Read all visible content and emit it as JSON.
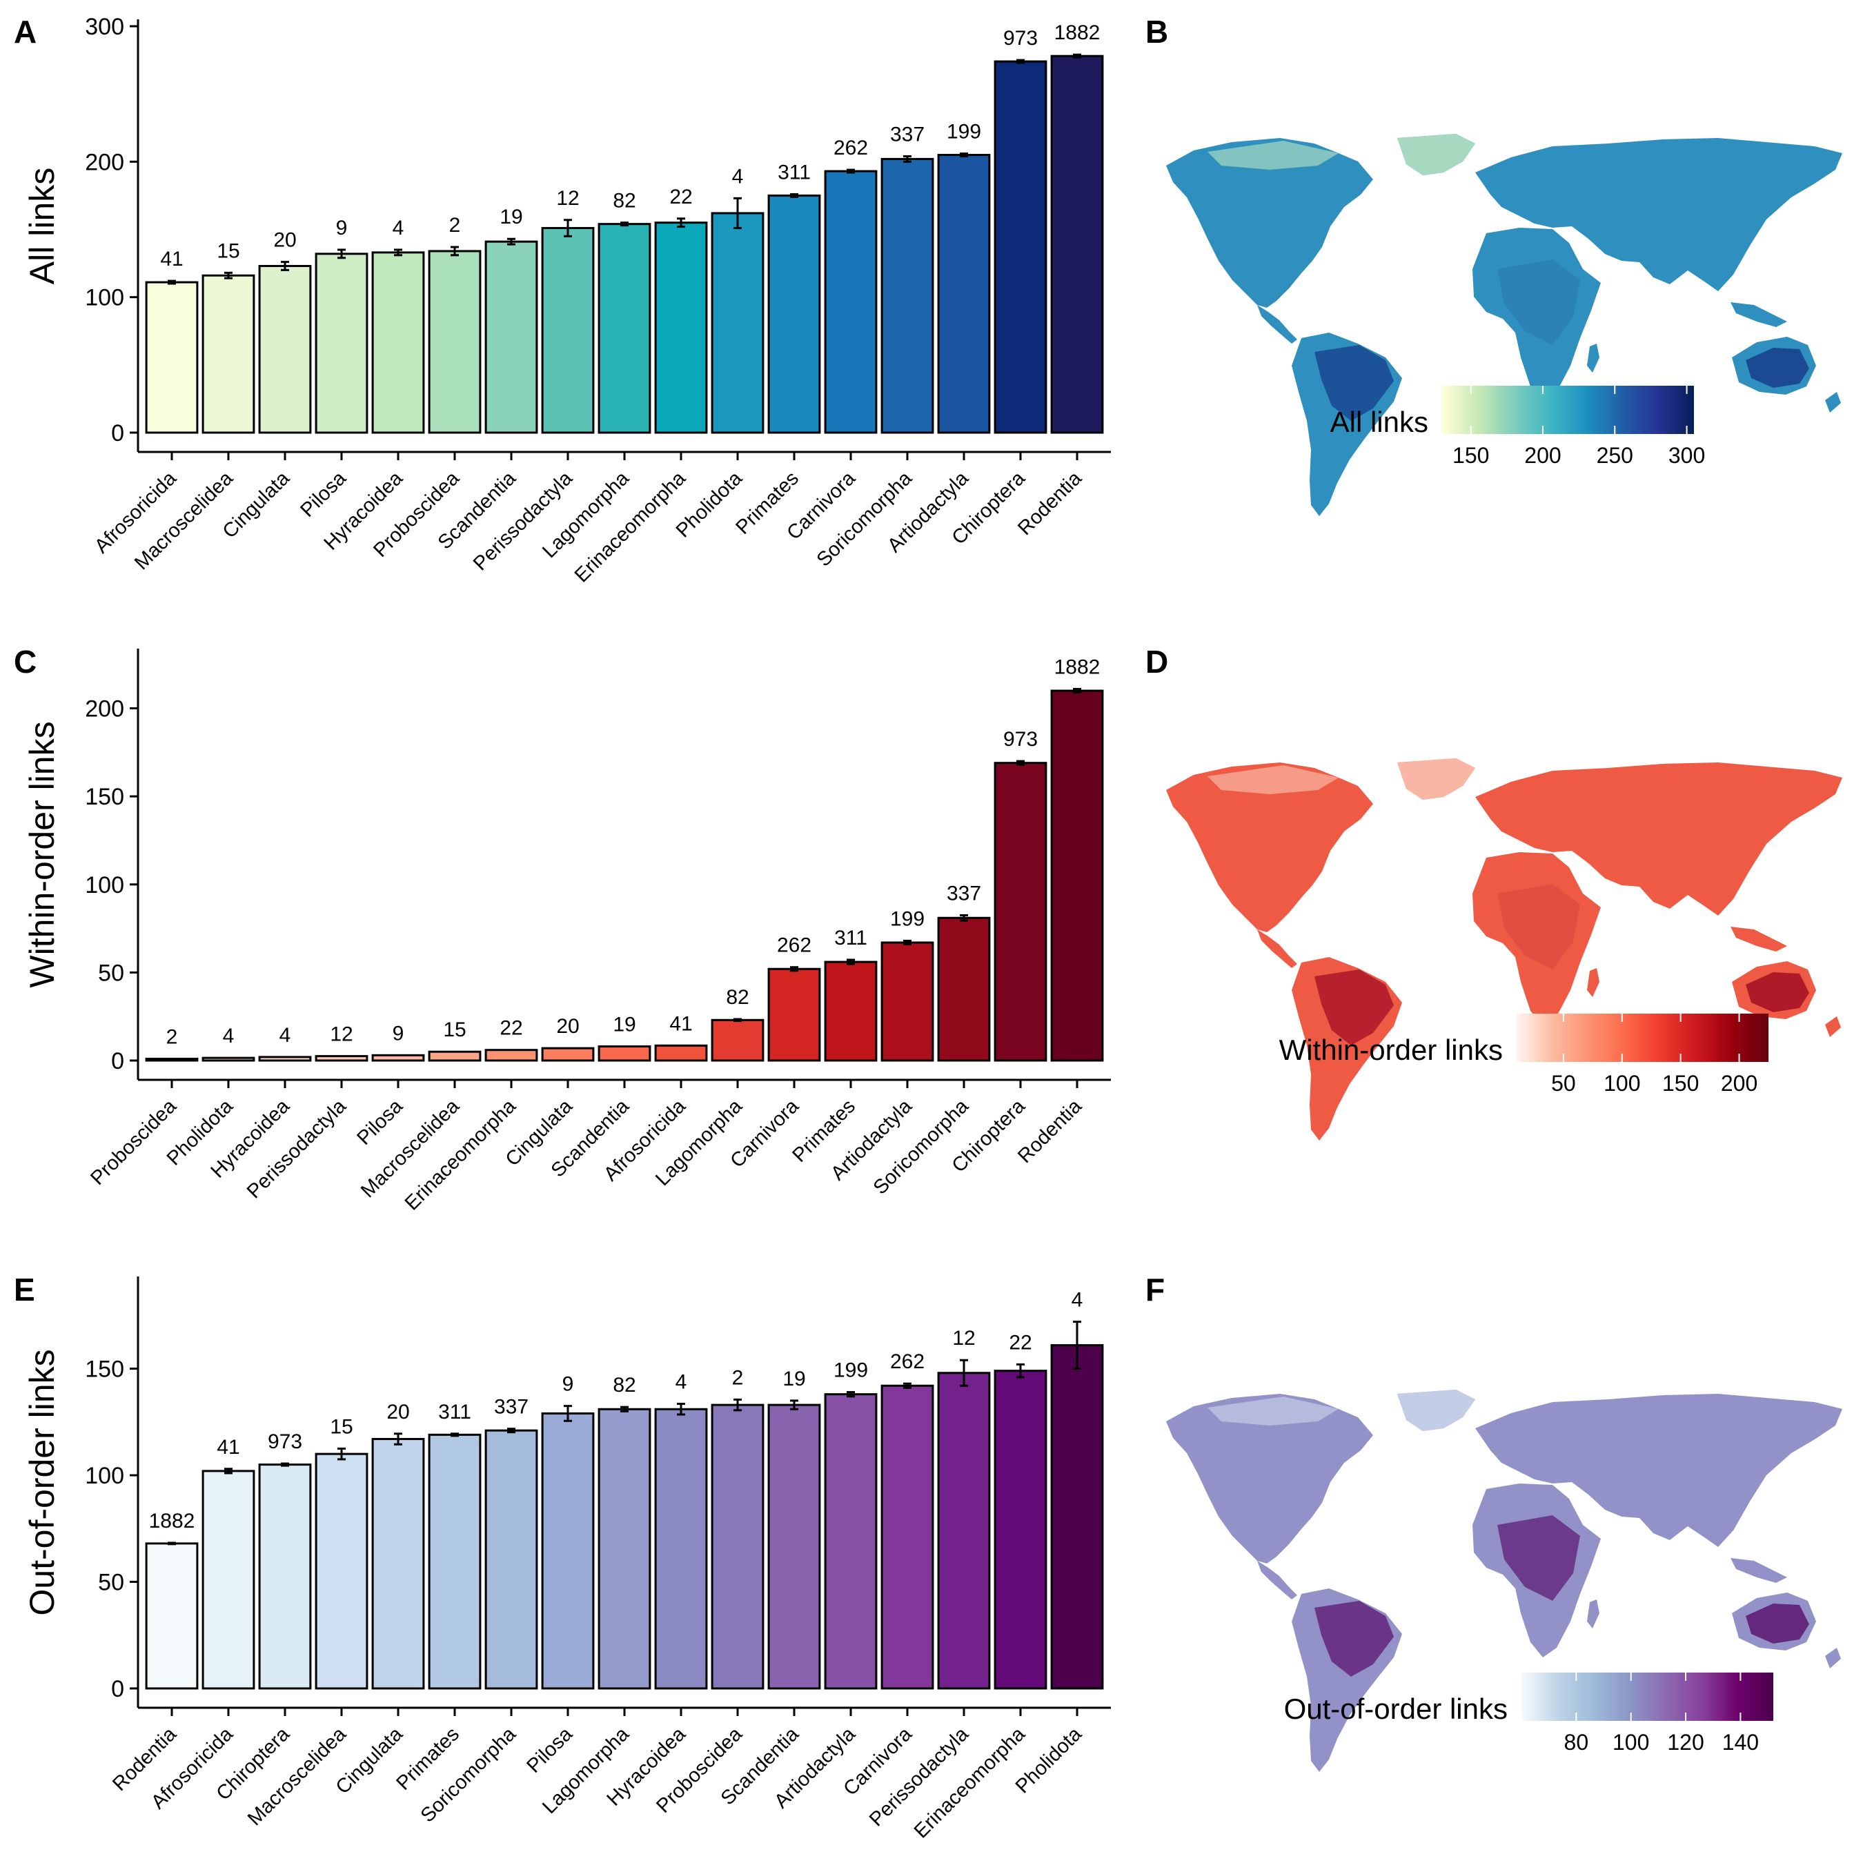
{
  "chart_data": [
    {
      "panel": "A",
      "type": "bar",
      "ylabel": "All links",
      "ylim": [
        0,
        300
      ],
      "yticks": [
        0,
        100,
        200,
        300
      ],
      "categories": [
        "Afrosoricida",
        "Macroscelidea",
        "Cingulata",
        "Pilosa",
        "Hyracoidea",
        "Proboscidea",
        "Scandentia",
        "Perissodactyla",
        "Lagomorpha",
        "Erinaceomorpha",
        "Pholidota",
        "Primates",
        "Carnivora",
        "Soricomorpha",
        "Artiodactyla",
        "Chiroptera",
        "Rodentia"
      ],
      "values": [
        111,
        116,
        123,
        132,
        133,
        134,
        141,
        151,
        154,
        155,
        162,
        175,
        193,
        202,
        205,
        274,
        278
      ],
      "errors": [
        1,
        2,
        3,
        3,
        2,
        3,
        2,
        6,
        1,
        3,
        11,
        1,
        1,
        2,
        1,
        1,
        1
      ],
      "labels": [
        "41",
        "15",
        "20",
        "9",
        "4",
        "2",
        "19",
        "12",
        "82",
        "22",
        "4",
        "311",
        "262",
        "337",
        "199",
        "973",
        "1882"
      ],
      "palette": "YlGnBu",
      "colors": [
        "#fbfedc",
        "#ecf8d4",
        "#dcf2cc",
        "#cfedc4",
        "#c0e8bd",
        "#a9dfbb",
        "#8ad3b9",
        "#5dc2b6",
        "#29b3b5",
        "#0aa8b8",
        "#1a98c0",
        "#1989bf",
        "#1877b8",
        "#1c66ae",
        "#1b54a0",
        "#0c2a78",
        "#1d1b5c"
      ]
    },
    {
      "panel": "C",
      "type": "bar",
      "ylabel": "Within-order links",
      "ylim": [
        0,
        230
      ],
      "yticks": [
        0,
        50,
        100,
        150,
        200
      ],
      "categories": [
        "Proboscidea",
        "Pholidota",
        "Hyracoidea",
        "Perissodactyla",
        "Pilosa",
        "Macroscelidea",
        "Erinaceomorpha",
        "Cingulata",
        "Scandentia",
        "Afrosoricida",
        "Lagomorpha",
        "Carnivora",
        "Primates",
        "Artiodactyla",
        "Soricomorpha",
        "Chiroptera",
        "Rodentia"
      ],
      "values": [
        1,
        1.5,
        2,
        2.5,
        3,
        5,
        6,
        7,
        8,
        8.5,
        23,
        52,
        56,
        67,
        81,
        169,
        210
      ],
      "errors": [
        0,
        0,
        0,
        0,
        0,
        0,
        0,
        0,
        0,
        0,
        0.5,
        1,
        1.2,
        1,
        1.5,
        1,
        1
      ],
      "labels": [
        "2",
        "4",
        "4",
        "12",
        "9",
        "15",
        "22",
        "20",
        "19",
        "41",
        "82",
        "262",
        "311",
        "199",
        "337",
        "973",
        "1882"
      ],
      "palette": "Reds",
      "colors": [
        "#fff5f0",
        "#fee9df",
        "#fedccc",
        "#fdcbb6",
        "#fcb99f",
        "#fca688",
        "#fc9272",
        "#fb7d5d",
        "#f9694c",
        "#f0533b",
        "#e33b2f",
        "#d32522",
        "#bf151b",
        "#aa0f1b",
        "#910a1c",
        "#7a0520",
        "#67001f"
      ]
    },
    {
      "panel": "E",
      "type": "bar",
      "ylabel": "Out-of-order links",
      "ylim": [
        0,
        190
      ],
      "yticks": [
        0,
        50,
        100,
        150
      ],
      "categories": [
        "Rodentia",
        "Afrosoricida",
        "Chiroptera",
        "Macroscelidea",
        "Cingulata",
        "Primates",
        "Soricomorpha",
        "Pilosa",
        "Lagomorpha",
        "Hyracoidea",
        "Proboscidea",
        "Scandentia",
        "Artiodactyla",
        "Carnivora",
        "Perissodactyla",
        "Erinaceomorpha",
        "Pholidota"
      ],
      "values": [
        68,
        102,
        105,
        110,
        117,
        119,
        121,
        129,
        131,
        131,
        133,
        133,
        138,
        142,
        148,
        149,
        161
      ],
      "errors": [
        0.3,
        1,
        0.5,
        2.5,
        2.5,
        0.5,
        0.8,
        3.5,
        1,
        2.5,
        2.5,
        2,
        1,
        1,
        6,
        3,
        11
      ],
      "labels": [
        "1882",
        "41",
        "973",
        "15",
        "20",
        "311",
        "337",
        "9",
        "82",
        "4",
        "2",
        "19",
        "199",
        "262",
        "12",
        "22",
        "4"
      ],
      "palette": "BuPu",
      "colors": [
        "#f4fafc",
        "#e5f2f7",
        "#d9eaf3",
        "#cddff0",
        "#bfd4ea",
        "#b2c9e3",
        "#a4bbdd",
        "#98aad5",
        "#929bcc",
        "#8c8ac2",
        "#8978b9",
        "#8964ae",
        "#8751a5",
        "#82379a",
        "#74228b",
        "#640a78",
        "#4d004b"
      ]
    }
  ],
  "panel_letters": [
    "A",
    "B",
    "C",
    "D",
    "E",
    "F"
  ],
  "maps": [
    {
      "panel": "B",
      "legend_title": "All links",
      "legend_ticks": [
        "150",
        "200",
        "250",
        "300"
      ],
      "legend_tick_values": [
        150,
        200,
        250,
        300
      ],
      "legend_range": [
        130,
        305
      ],
      "gradient": [
        "#ffffd9",
        "#c7e9b4",
        "#7fcdbb",
        "#41b6c4",
        "#1d91c0",
        "#225ea8",
        "#253494",
        "#081d58"
      ],
      "land_color": "#2f8fbf",
      "highlight_color": "#173d8a",
      "north_color": "#a6d9c0"
    },
    {
      "panel": "D",
      "legend_title": "Within-order links",
      "legend_ticks": [
        "50",
        "100",
        "150",
        "200"
      ],
      "legend_tick_values": [
        50,
        100,
        150,
        200
      ],
      "legend_range": [
        10,
        225
      ],
      "gradient": [
        "#fff5f0",
        "#fcbba1",
        "#fc9272",
        "#fb6a4a",
        "#ef3b2c",
        "#cb181d",
        "#99000d",
        "#67000d"
      ],
      "land_color": "#ef5a45",
      "highlight_color": "#a30f25",
      "north_color": "#f9b6a5"
    },
    {
      "panel": "F",
      "legend_title": "Out-of-order links",
      "legend_ticks": [
        "80",
        "100",
        "120",
        "140"
      ],
      "legend_tick_values": [
        80,
        100,
        120,
        140
      ],
      "legend_range": [
        60,
        152
      ],
      "gradient": [
        "#f7fcfd",
        "#bfd3e6",
        "#9ebcda",
        "#8c96c6",
        "#8c6bb1",
        "#88419d",
        "#6e016b",
        "#4d004b"
      ],
      "land_color": "#9292c9",
      "highlight_color": "#5c1670",
      "north_color": "#c3cde6"
    }
  ]
}
